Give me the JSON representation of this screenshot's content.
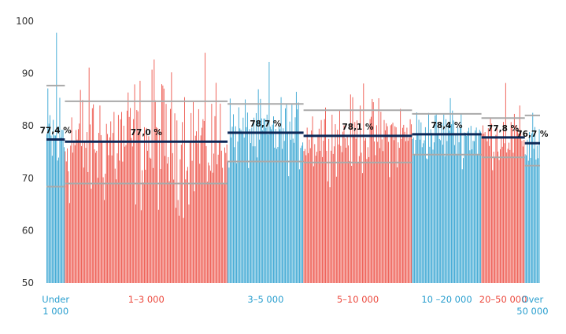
{
  "chart_data": {
    "type": "bar",
    "ylim": [
      50,
      100
    ],
    "yticks": [
      50,
      60,
      70,
      80,
      90,
      100
    ],
    "grid": false,
    "colors": {
      "blue": "#2a9fcf",
      "red": "#ec4a3f",
      "mean": "#0c2756",
      "band": "#a9a9a9"
    },
    "groups": [
      {
        "label_lines": [
          "Under",
          "1 000"
        ],
        "color": "blue",
        "count": 17,
        "mean": 77.4,
        "mean_label": "77,4 %",
        "upper": 87.7,
        "lower": 68.4,
        "spread": 10,
        "peak": 97.8
      },
      {
        "label_lines": [
          "1–3 000"
        ],
        "color": "red",
        "count": 150,
        "mean": 77.0,
        "mean_label": "77,0 %",
        "upper": 84.7,
        "lower": 69.0,
        "spread": 11,
        "peak": 92.7
      },
      {
        "label_lines": [
          "3–5 000"
        ],
        "color": "blue",
        "count": 70,
        "mean": 78.7,
        "mean_label": "78,7 %",
        "upper": 84.2,
        "lower": 73.2,
        "spread": 6,
        "peak": 92.2
      },
      {
        "label_lines": [
          "5–10 000"
        ],
        "color": "red",
        "count": 100,
        "mean": 78.1,
        "mean_label": "78,1 %",
        "upper": 83.0,
        "lower": 73.0,
        "spread": 6,
        "peak": 88.1
      },
      {
        "label_lines": [
          "10 –20 000"
        ],
        "color": "blue",
        "count": 64,
        "mean": 78.4,
        "mean_label": "78,4 %",
        "upper": 82.3,
        "lower": 74.5,
        "spread": 4.5,
        "peak": 85.3
      },
      {
        "label_lines": [
          "20–50 000"
        ],
        "color": "red",
        "count": 40,
        "mean": 77.8,
        "mean_label": "77,8 %",
        "upper": 81.5,
        "lower": 74.0,
        "spread": 4.5,
        "peak": 88.2
      },
      {
        "label_lines": [
          "Over",
          "50 000"
        ],
        "color": "blue",
        "count": 14,
        "mean": 76.7,
        "mean_label": "76,7 %",
        "upper": 82.0,
        "lower": 72.4,
        "spread": 5,
        "peak": 82.5
      }
    ]
  }
}
